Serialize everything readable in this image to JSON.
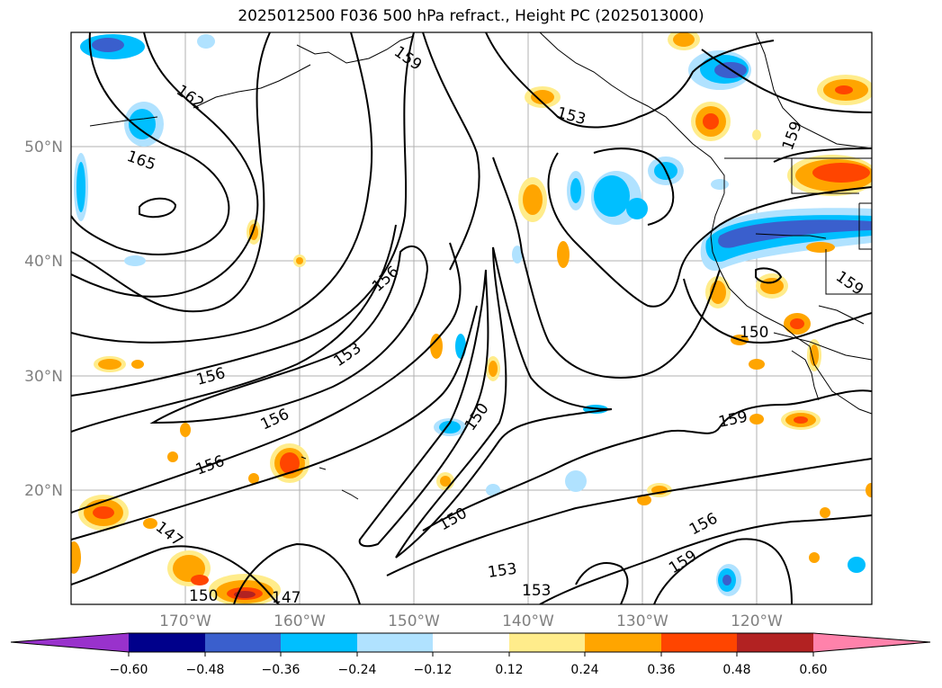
{
  "title": "2025012500 F036 500 hPa refract., Height PC (2025013000)",
  "map": {
    "lat_labels": [
      "50°N",
      "40°N",
      "30°N",
      "20°N"
    ],
    "lon_labels": [
      "170°W",
      "160°W",
      "150°W",
      "140°W",
      "130°W",
      "120°W"
    ],
    "contour_labels": [
      "162",
      "165",
      "159",
      "153",
      "159",
      "159",
      "156",
      "156",
      "153",
      "156",
      "150",
      "156",
      "150",
      "159",
      "150",
      "147",
      "150",
      "147",
      "153",
      "153",
      "156",
      "159"
    ]
  },
  "colorbar": {
    "ticks": [
      "−0.60",
      "−0.48",
      "−0.36",
      "−0.24",
      "−0.12",
      "0.12",
      "0.24",
      "0.36",
      "0.48",
      "0.60"
    ],
    "colors": [
      "#9932cc",
      "#00008b",
      "#3a5fcd",
      "#00bfff",
      "#b0e2ff",
      "#ffffff",
      "#ffec8b",
      "#ffa500",
      "#ff4500",
      "#b22222",
      "#ff82ab"
    ]
  }
}
